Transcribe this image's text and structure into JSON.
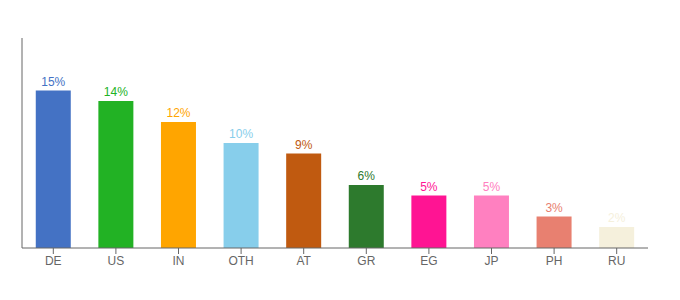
{
  "chart_data": {
    "type": "bar",
    "categories": [
      "DE",
      "US",
      "IN",
      "OTH",
      "AT",
      "GR",
      "EG",
      "JP",
      "PH",
      "RU"
    ],
    "values": [
      15,
      14,
      12,
      10,
      9,
      6,
      5,
      5,
      3,
      2
    ],
    "value_labels": [
      "15%",
      "14%",
      "12%",
      "10%",
      "9%",
      "6%",
      "5%",
      "5%",
      "3%",
      "2%"
    ],
    "colors": [
      "#4472C4",
      "#22B224",
      "#FFA500",
      "#87CEEB",
      "#C05A10",
      "#2D7A2D",
      "#FF1493",
      "#FF80C0",
      "#E88070",
      "#F5F0DC"
    ],
    "ylim": [
      0,
      20
    ],
    "grid": false,
    "data_labels": true,
    "tick_labels": "x"
  }
}
